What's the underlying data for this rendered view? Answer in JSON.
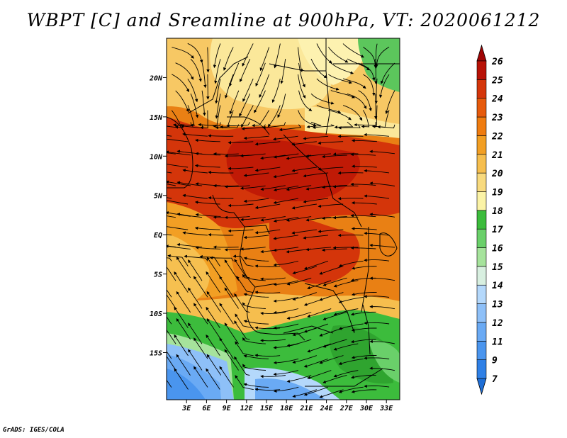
{
  "title": "WBPT [C] and Sreamline at 900hPa, VT: 2020061212",
  "credit": "GrADS: IGES/COLA",
  "map": {
    "lon_range": [
      0,
      35
    ],
    "lat_range": [
      -21,
      25
    ],
    "lat_ticks": [
      {
        "value": 20,
        "label": "20N"
      },
      {
        "value": 15,
        "label": "15N"
      },
      {
        "value": 10,
        "label": "10N"
      },
      {
        "value": 5,
        "label": "5N"
      },
      {
        "value": 0,
        "label": "EQ"
      },
      {
        "value": -5,
        "label": "5S"
      },
      {
        "value": -10,
        "label": "10S"
      },
      {
        "value": -15,
        "label": "15S"
      }
    ],
    "lon_ticks": [
      {
        "value": 3,
        "label": "3E"
      },
      {
        "value": 6,
        "label": "6E"
      },
      {
        "value": 9,
        "label": "9E"
      },
      {
        "value": 12,
        "label": "12E"
      },
      {
        "value": 15,
        "label": "15E"
      },
      {
        "value": 18,
        "label": "18E"
      },
      {
        "value": 21,
        "label": "21E"
      },
      {
        "value": 24,
        "label": "24E"
      },
      {
        "value": 27,
        "label": "27E"
      },
      {
        "value": 30,
        "label": "30E"
      },
      {
        "value": 33,
        "label": "33E"
      }
    ]
  },
  "colorbar": {
    "levels": [
      "7",
      "9",
      "11",
      "12",
      "13",
      "14",
      "15",
      "16",
      "17",
      "18",
      "19",
      "20",
      "21",
      "22",
      "23",
      "24",
      "25",
      "26"
    ],
    "colors": [
      "#1e6ed6",
      "#2f80e6",
      "#4a95ee",
      "#6aaaf4",
      "#8ec0f8",
      "#b4d8fb",
      "#d8efe0",
      "#a6e39c",
      "#6ad06a",
      "#3cbc3c",
      "#fbf3a6",
      "#f8da7e",
      "#f6be4e",
      "#f29f24",
      "#ef7c10",
      "#e65a0c",
      "#d4350a",
      "#b81206",
      "#a00404"
    ]
  }
}
